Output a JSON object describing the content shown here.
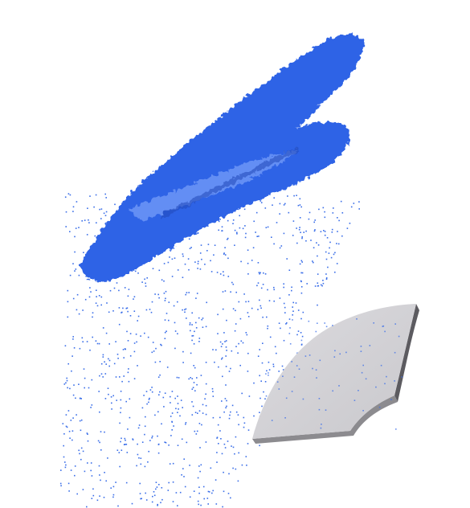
{
  "scene": {
    "background_color": "#ffffff",
    "colors": {
      "cloud_blue": "#2f64e6",
      "cloud_dark": "#1f49b8",
      "cloud_highlight": "#8fb1ff",
      "scatter_blue": "#3a6ee8",
      "slab_top": "#d3d2d6",
      "slab_edge": "#8c8b8f",
      "slab_edge_dark": "#5c5b60"
    },
    "objects": [
      {
        "kind": "dense-point-cloud",
        "color": "cloud_blue"
      },
      {
        "kind": "sparse-point-scatter",
        "color": "scatter_blue"
      },
      {
        "kind": "grey-curved-slab",
        "color": "slab_top"
      }
    ]
  }
}
